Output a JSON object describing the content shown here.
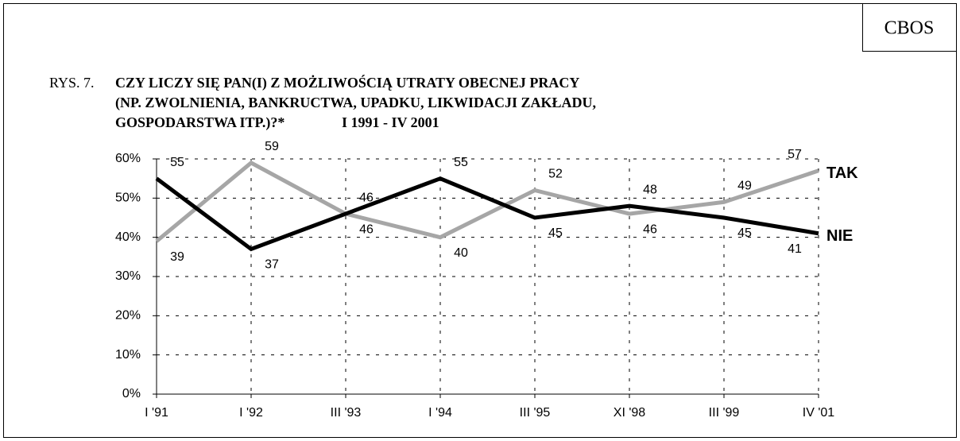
{
  "chart_data": {
    "type": "line",
    "source": "CBOS",
    "figure_label": "RYS. 7.",
    "title_lines": [
      "CZY LICZY SIĘ PAN(I) Z MOŻLIWOŚCIĄ UTRATY OBECNEJ PRACY",
      "(NP. ZWOLNIENIA, BANKRUCTWA, UPADKU, LIKWIDACJI ZAKŁADU,",
      "GOSPODARSTWA ITP.)?*"
    ],
    "date_range": "I 1991 - IV 2001",
    "categories": [
      "I '91",
      "I '92",
      "III '93",
      "I '94",
      "III '95",
      "XI '98",
      "III '99",
      "IV '01"
    ],
    "series": [
      {
        "name": "TAK",
        "color": "#a6a6a6",
        "values": [
          39,
          59,
          46,
          40,
          52,
          46,
          49,
          57
        ]
      },
      {
        "name": "NIE",
        "color": "#000000",
        "values": [
          55,
          37,
          46,
          55,
          45,
          48,
          45,
          41
        ]
      }
    ],
    "ylim": [
      0,
      60
    ],
    "yticks": [
      {
        "value": 0,
        "label": "0%"
      },
      {
        "value": 10,
        "label": "10%"
      },
      {
        "value": 20,
        "label": "20%"
      },
      {
        "value": 30,
        "label": "30%"
      },
      {
        "value": 40,
        "label": "40%"
      },
      {
        "value": 50,
        "label": "50%"
      },
      {
        "value": 60,
        "label": "60%"
      }
    ],
    "grid": true
  }
}
